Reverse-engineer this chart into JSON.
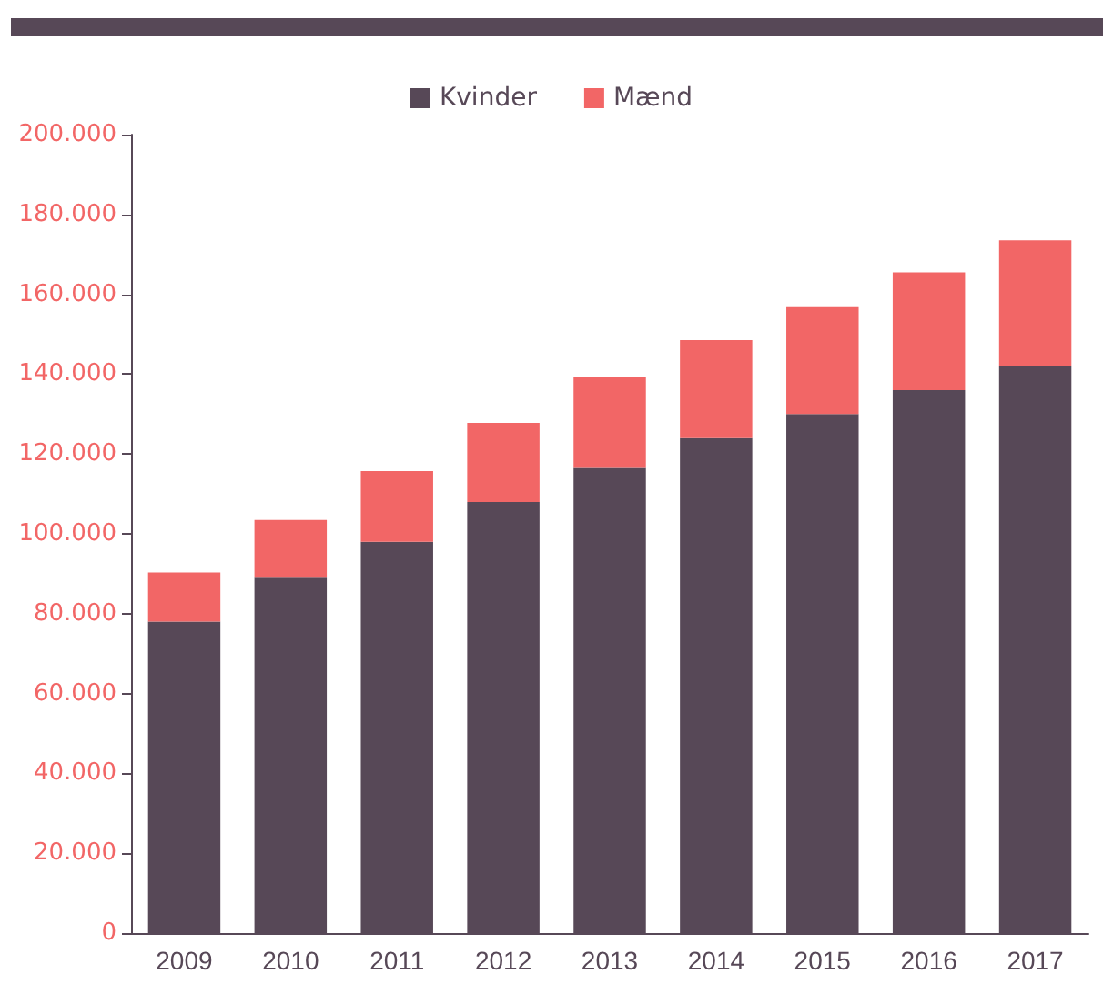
{
  "chart_data": {
    "type": "bar",
    "stacked": true,
    "legend": "top",
    "grid": false,
    "categories": [
      "2009",
      "2010",
      "2011",
      "2012",
      "2013",
      "2014",
      "2015",
      "2016",
      "2017"
    ],
    "series": [
      {
        "name": "Kvinder",
        "color": "#574857",
        "values": [
          78000,
          89000,
          98000,
          108000,
          116500,
          124000,
          130000,
          136000,
          142000
        ]
      },
      {
        "name": "Mænd",
        "color": "#f26666",
        "values": [
          12300,
          14500,
          17700,
          19800,
          22800,
          24500,
          26800,
          29500,
          31500
        ]
      }
    ],
    "ylim": [
      0,
      200000
    ],
    "yticks": [
      {
        "value": 0,
        "label": "0"
      },
      {
        "value": 20000,
        "label": "20.000"
      },
      {
        "value": 40000,
        "label": "40.000"
      },
      {
        "value": 60000,
        "label": "60.000"
      },
      {
        "value": 80000,
        "label": "80.000"
      },
      {
        "value": 100000,
        "label": "100.000"
      },
      {
        "value": 120000,
        "label": "120.000"
      },
      {
        "value": 140000,
        "label": "140.000"
      },
      {
        "value": 160000,
        "label": "160.000"
      },
      {
        "value": 180000,
        "label": "180.000"
      },
      {
        "value": 200000,
        "label": "200.000"
      }
    ]
  }
}
